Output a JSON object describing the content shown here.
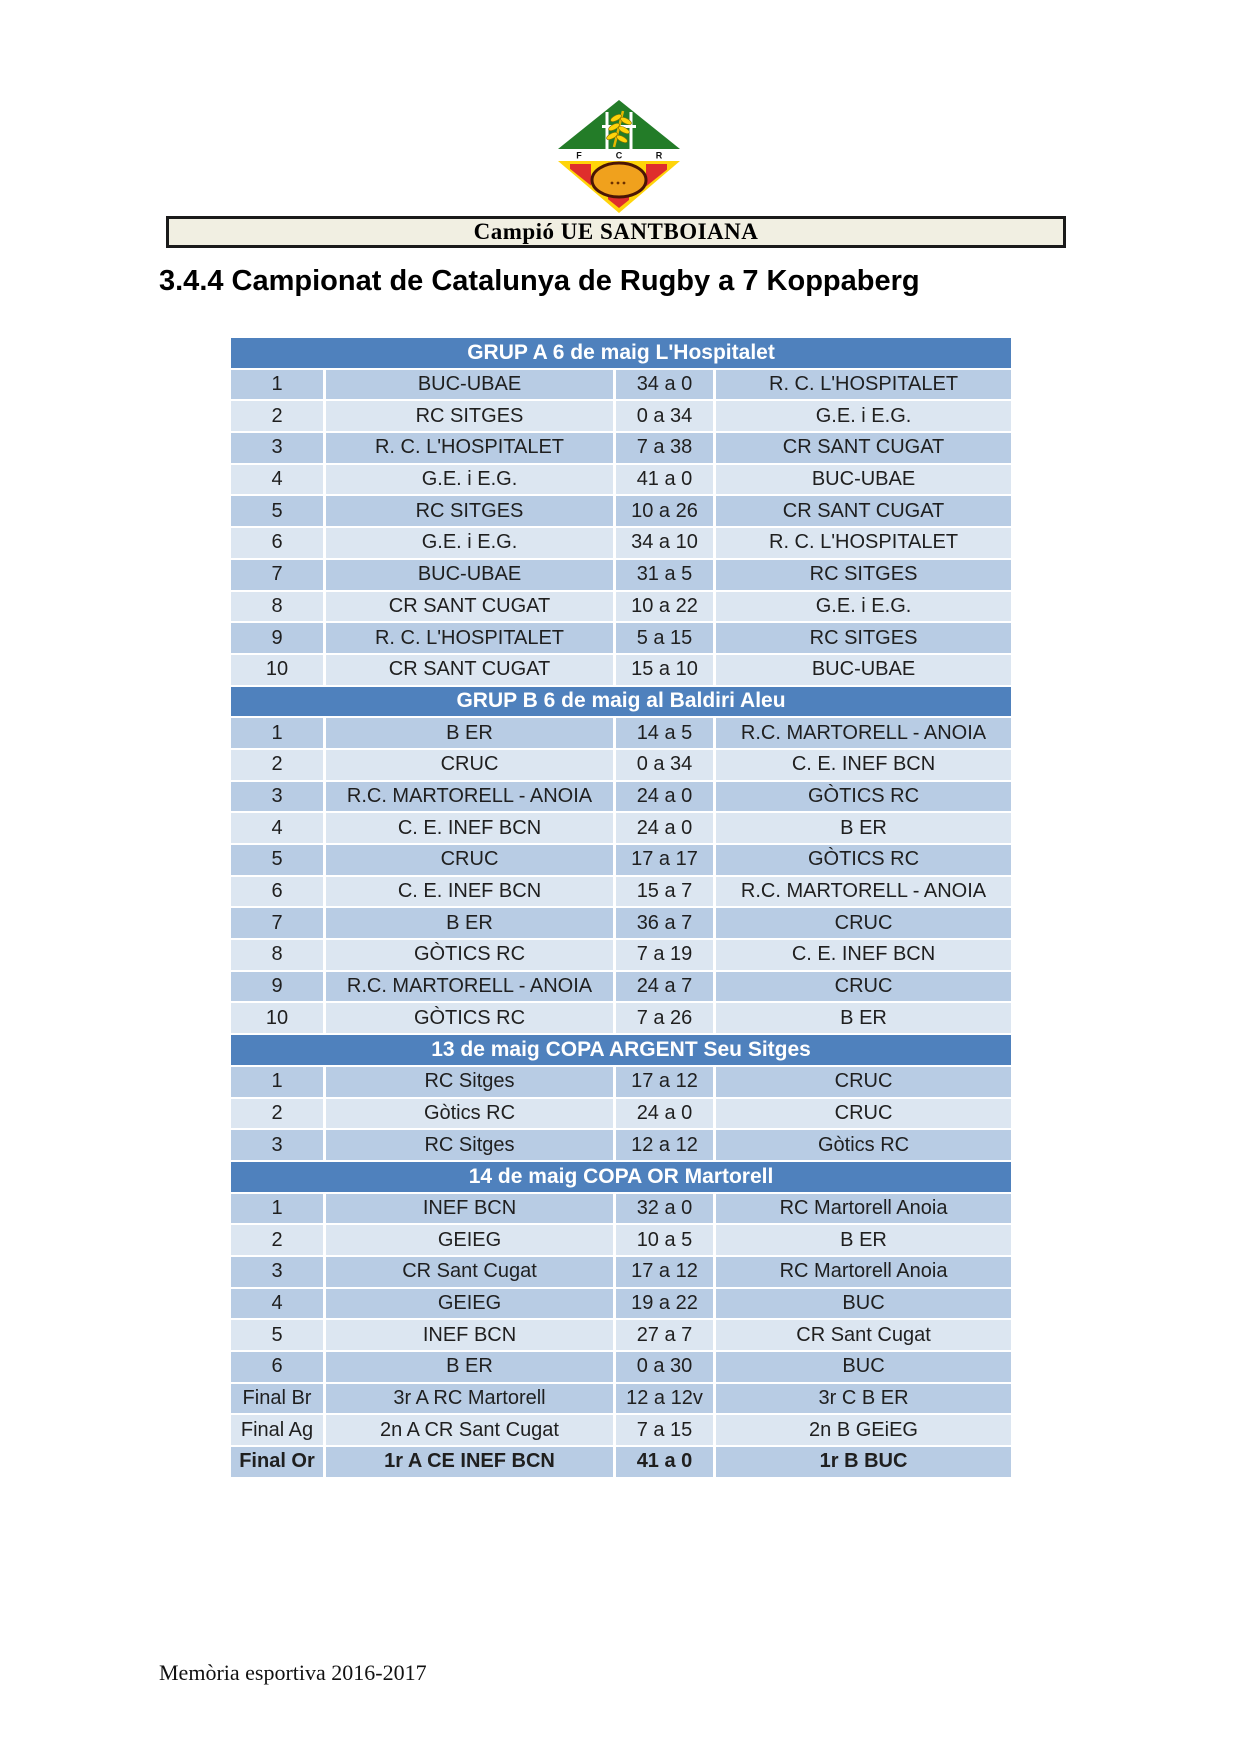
{
  "page": {
    "banner": "Campió UE SANTBOIANA",
    "heading": "3.4.4 Campionat de Catalunya de Rugby a 7 Koppaberg",
    "footer": "Memòria esportiva 2016-2017"
  },
  "logo": {
    "description": "FCR rugby federation crest",
    "letters": [
      "F",
      "C",
      "R"
    ],
    "colors": {
      "green": "#237c28",
      "yellow": "#ffd40a",
      "red": "#df2e2c",
      "ball": "#f0a11d"
    }
  },
  "colors": {
    "section_header_bg": "#4F81BD",
    "row_dark": "#B8CCE4",
    "row_light": "#DCE6F1",
    "banner_bg": "#f1efe2",
    "body_text": "#1f1f1f"
  },
  "table": {
    "columns": [
      "number",
      "home_team",
      "score",
      "away_team"
    ],
    "sections": [
      {
        "title": "GRUP A 6 de maig L'Hospitalet",
        "rows": [
          {
            "n": "1",
            "home": "BUC-UBAE",
            "score": "34 a 0",
            "away": "R. C. L'HOSPITALET",
            "shade": "dark"
          },
          {
            "n": "2",
            "home": "RC SITGES",
            "score": "0 a 34",
            "away": "G.E. i E.G.",
            "shade": "light"
          },
          {
            "n": "3",
            "home": "R. C. L'HOSPITALET",
            "score": "7 a 38",
            "away": "CR SANT CUGAT",
            "shade": "dark"
          },
          {
            "n": "4",
            "home": "G.E. i E.G.",
            "score": "41 a 0",
            "away": "BUC-UBAE",
            "shade": "light"
          },
          {
            "n": "5",
            "home": "RC SITGES",
            "score": "10 a 26",
            "away": "CR SANT CUGAT",
            "shade": "dark"
          },
          {
            "n": "6",
            "home": "G.E. i E.G.",
            "score": "34 a 10",
            "away": "R. C. L'HOSPITALET",
            "shade": "light"
          },
          {
            "n": "7",
            "home": "BUC-UBAE",
            "score": "31 a 5",
            "away": "RC SITGES",
            "shade": "dark"
          },
          {
            "n": "8",
            "home": "CR SANT CUGAT",
            "score": "10 a 22",
            "away": "G.E. i E.G.",
            "shade": "light"
          },
          {
            "n": "9",
            "home": "R. C. L'HOSPITALET",
            "score": "5 a 15",
            "away": "RC SITGES",
            "shade": "dark"
          },
          {
            "n": "10",
            "home": "CR SANT CUGAT",
            "score": "15 a 10",
            "away": "BUC-UBAE",
            "shade": "light"
          }
        ]
      },
      {
        "title": "GRUP B 6 de maig al Baldiri Aleu",
        "rows": [
          {
            "n": "1",
            "home": "B ER",
            "score": "14 a 5",
            "away": "R.C. MARTORELL - ANOIA",
            "shade": "dark"
          },
          {
            "n": "2",
            "home": "CRUC",
            "score": "0 a 34",
            "away": "C. E. INEF BCN",
            "shade": "light"
          },
          {
            "n": "3",
            "home": "R.C. MARTORELL - ANOIA",
            "score": "24 a 0",
            "away": "GÒTICS RC",
            "shade": "dark"
          },
          {
            "n": "4",
            "home": "C. E. INEF BCN",
            "score": "24 a 0",
            "away": "B ER",
            "shade": "light"
          },
          {
            "n": "5",
            "home": "CRUC",
            "score": "17 a 17",
            "away": "GÒTICS RC",
            "shade": "dark"
          },
          {
            "n": "6",
            "home": "C. E. INEF BCN",
            "score": "15 a 7",
            "away": "R.C. MARTORELL - ANOIA",
            "shade": "light"
          },
          {
            "n": "7",
            "home": "B ER",
            "score": "36 a 7",
            "away": "CRUC",
            "shade": "dark"
          },
          {
            "n": "8",
            "home": "GÒTICS RC",
            "score": "7 a 19",
            "away": "C. E. INEF BCN",
            "shade": "light"
          },
          {
            "n": "9",
            "home": "R.C. MARTORELL - ANOIA",
            "score": "24 a 7",
            "away": "CRUC",
            "shade": "dark"
          },
          {
            "n": "10",
            "home": "GÒTICS RC",
            "score": "7 a 26",
            "away": "B ER",
            "shade": "light"
          }
        ]
      },
      {
        "title": "13 de maig  COPA ARGENT Seu Sitges",
        "rows": [
          {
            "n": "1",
            "home": "RC Sitges",
            "score": "17 a 12",
            "away": "CRUC",
            "shade": "dark"
          },
          {
            "n": "2",
            "home": "Gòtics RC",
            "score": "24 a 0",
            "away": "CRUC",
            "shade": "light"
          },
          {
            "n": "3",
            "home": "RC Sitges",
            "score": "12 a 12",
            "away": "Gòtics RC",
            "shade": "dark"
          }
        ]
      },
      {
        "title": "14 de maig COPA OR Martorell",
        "rows": [
          {
            "n": "1",
            "home": "INEF BCN",
            "score": "32 a 0",
            "away": "RC Martorell Anoia",
            "shade": "dark"
          },
          {
            "n": "2",
            "home": "GEIEG",
            "score": "10 a 5",
            "away": "B ER",
            "shade": "light"
          },
          {
            "n": "3",
            "home": "CR Sant Cugat",
            "score": "17 a 12",
            "away": "RC Martorell Anoia",
            "shade": "dark"
          },
          {
            "n": "4",
            "home": "GEIEG",
            "score": "19 a 22",
            "away": "BUC",
            "shade": "dark"
          },
          {
            "n": "5",
            "home": "INEF BCN",
            "score": "27 a 7",
            "away": "CR Sant Cugat",
            "shade": "light"
          },
          {
            "n": "6",
            "home": "B ER",
            "score": "0 a 30",
            "away": "BUC",
            "shade": "dark"
          },
          {
            "n": "Final Br",
            "home": "3r A RC Martorell",
            "score": "12 a 12v",
            "away": "3r C B ER",
            "shade": "dark"
          },
          {
            "n": "Final Ag",
            "home": "2n A CR Sant Cugat",
            "score": "7 a 15",
            "away": "2n B GEiEG",
            "shade": "light"
          },
          {
            "n": "Final Or",
            "home": "1r A CE INEF BCN",
            "score": "41 a 0",
            "away": "1r B BUC",
            "shade": "dark",
            "bold": true
          }
        ]
      }
    ]
  }
}
